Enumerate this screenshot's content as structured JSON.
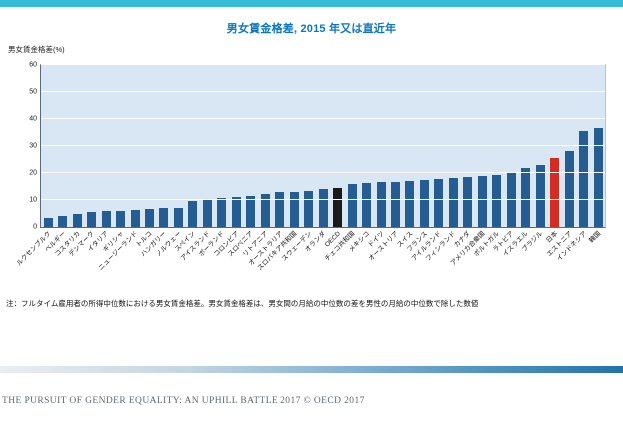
{
  "page": {
    "note": "注：フルタイム雇用者の所得中位数における男女賃金格差。男女賃金格差は、男女間の月給の中位数の差を男性の月給の中位数で除した数値",
    "footer": {
      "report_title": "THE PURSUIT OF GENDER EQUALITY: AN UPHILL BATTLE",
      "copyright": "2017 © OECD 2017"
    },
    "colors": {
      "top_strip": "#38bdd8",
      "title": "#0b76bc",
      "plot_background": "#d9e6f3",
      "bar": "#255d92",
      "oecd_bar": "#1a1a1a",
      "japan_bar": "#d22d20"
    }
  },
  "chart_data": {
    "type": "bar",
    "title": "男女賃金格差, 2015 年又は直近年",
    "ylabel": "男女賃金格差(%)",
    "ylim": [
      0,
      60
    ],
    "ytick_step": 10,
    "grid": true,
    "legend": false,
    "bar_color": "#255d92",
    "highlights": [
      {
        "label": "OECD",
        "color": "#1a1a1a"
      },
      {
        "label": "日本",
        "color": "#d22d20"
      }
    ],
    "categories": [
      "ルクセンブルク",
      "ベルギー",
      "コスタリカ",
      "デンマーク",
      "イタリア",
      "ギリシャ",
      "ニュージーランド",
      "トルコ",
      "ハンガリー",
      "ノルウェー",
      "スペイン",
      "アイスランド",
      "ポーランド",
      "コロンビア",
      "スロベニア",
      "リトアニア",
      "オーストラリア",
      "スロバキア共和国",
      "スウェーデン",
      "オランダ",
      "OECD",
      "チェコ共和国",
      "メキシコ",
      "ドイツ",
      "オーストリア",
      "スイス",
      "フランス",
      "アイルランド",
      "フィンランド",
      "カナダ",
      "アメリカ合衆国",
      "ポルトガル",
      "ラトビア",
      "イスラエル",
      "ブラジル",
      "日本",
      "エストニア",
      "インドネシア",
      "韓国"
    ],
    "values": [
      3.4,
      3.9,
      4.7,
      5.6,
      5.8,
      6.1,
      6.3,
      6.6,
      6.9,
      7.2,
      9.6,
      9.9,
      10.6,
      11.1,
      11.6,
      12.4,
      12.8,
      13.1,
      13.4,
      14.1,
      14.3,
      15.8,
      16.2,
      16.5,
      16.8,
      17.0,
      17.3,
      17.6,
      18.1,
      18.5,
      18.9,
      19.4,
      20.0,
      21.8,
      23.0,
      25.7,
      28.3,
      35.7,
      36.7
    ]
  }
}
